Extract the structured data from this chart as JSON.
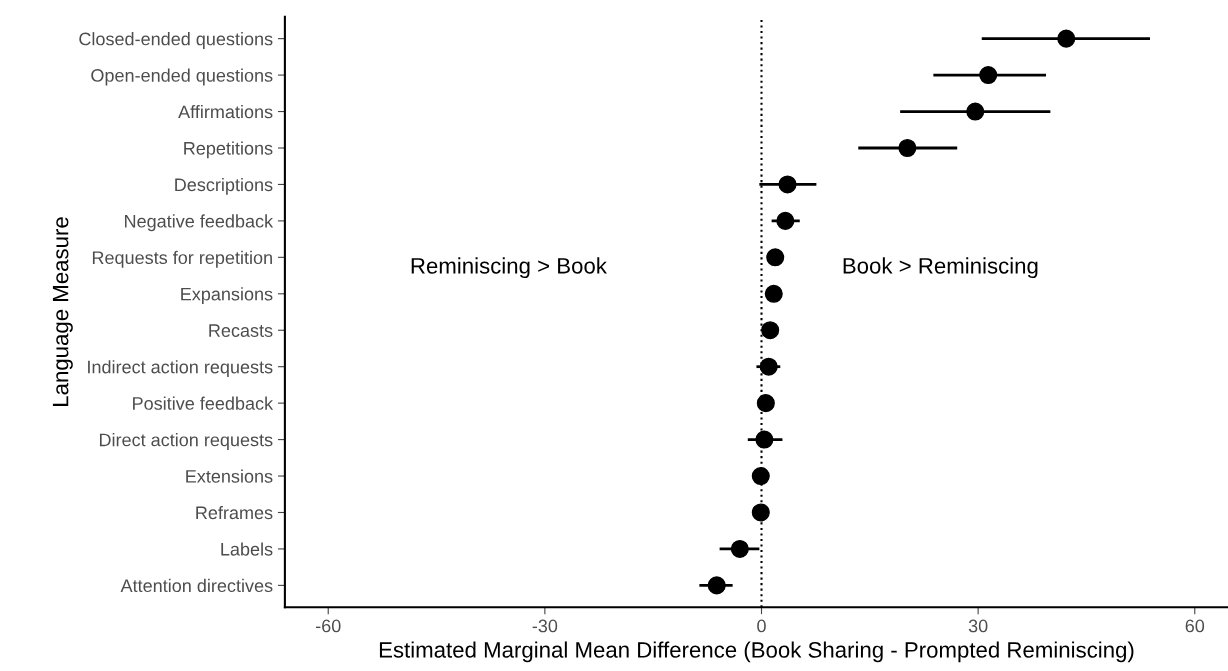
{
  "chart_data": {
    "type": "scatter",
    "orientation": "horizontal",
    "xlabel": "Estimated Marginal Mean Difference (Book Sharing - Prompted Reminiscing)",
    "ylabel": "Language Measure",
    "categories": [
      "Closed-ended questions",
      "Open-ended questions",
      "Affirmations",
      "Repetitions",
      "Descriptions",
      "Negative feedback",
      "Requests for repetition",
      "Expansions",
      "Recasts",
      "Indirect action requests",
      "Positive feedback",
      "Direct action requests",
      "Extensions",
      "Reframes",
      "Labels",
      "Attention directives"
    ],
    "values": [
      42.2,
      31.4,
      29.6,
      20.2,
      3.6,
      3.3,
      1.9,
      1.7,
      1.2,
      1.0,
      0.6,
      0.4,
      -0.1,
      -0.1,
      -3.0,
      -6.2
    ],
    "errors": [
      [
        30.5,
        53.8
      ],
      [
        23.8,
        39.4
      ],
      [
        19.2,
        40.0
      ],
      [
        13.4,
        27.1
      ],
      [
        -0.3,
        7.6
      ],
      [
        1.4,
        5.3
      ],
      null,
      null,
      null,
      [
        -0.7,
        2.6
      ],
      null,
      [
        -1.9,
        2.9
      ],
      null,
      null,
      [
        -5.8,
        -0.3
      ],
      [
        -8.6,
        -4.0
      ]
    ],
    "color": "#000000",
    "marker": "circle",
    "xlim": [
      -66,
      64.6
    ],
    "xticks": [
      -60,
      -30,
      0,
      30,
      60
    ],
    "ref_lines": [
      {
        "axis": "x",
        "value": 0,
        "line_style": "dotted",
        "color": "#000000"
      }
    ],
    "annotations": [
      "Reminiscing > Book",
      "Book > Reminiscing"
    ],
    "grid": false,
    "legend": false
  }
}
